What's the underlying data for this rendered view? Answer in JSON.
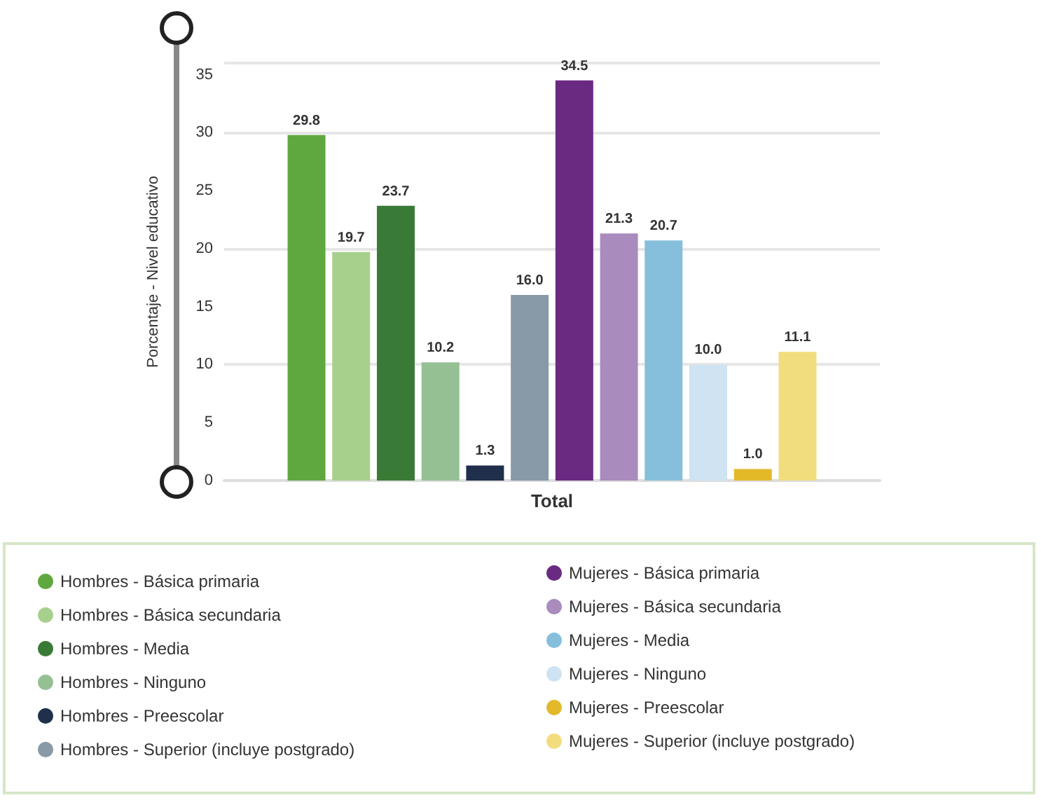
{
  "chart_data": {
    "type": "bar",
    "ylabel": "Porcentaje - Nivel educativo",
    "categories": [
      "Total"
    ],
    "ylim": [
      0,
      36
    ],
    "yticks": [
      0,
      5,
      10,
      15,
      20,
      25,
      30,
      35
    ],
    "grid": "y",
    "legend": "bottom",
    "series": [
      {
        "name": "Hombres - Básica primaria",
        "color": "#5fa83f",
        "values": [
          29.8
        ],
        "value_labels": [
          "29.8"
        ]
      },
      {
        "name": "Hombres - Básica secundaria",
        "color": "#a8d08d",
        "values": [
          19.7
        ],
        "value_labels": [
          "19.7"
        ]
      },
      {
        "name": "Hombres - Media",
        "color": "#3a7a37",
        "values": [
          23.7
        ],
        "value_labels": [
          "23.7"
        ]
      },
      {
        "name": "Hombres - Ninguno",
        "color": "#95c094",
        "values": [
          10.2
        ],
        "value_labels": [
          "10.2"
        ]
      },
      {
        "name": "Hombres - Preescolar",
        "color": "#1f2f4c",
        "values": [
          1.3
        ],
        "value_labels": [
          "1.3"
        ]
      },
      {
        "name": "Hombres - Superior (incluye postgrado)",
        "color": "#8899a8",
        "values": [
          16
        ],
        "value_labels": [
          "16.0"
        ]
      },
      {
        "name": "Mujeres - Básica primaria",
        "color": "#6a2a82",
        "values": [
          34.5
        ],
        "value_labels": [
          "34.5"
        ]
      },
      {
        "name": "Mujeres - Básica secundaria",
        "color": "#a98bbd",
        "values": [
          21.3
        ],
        "value_labels": [
          "21.3"
        ]
      },
      {
        "name": "Mujeres - Media",
        "color": "#86bfdc",
        "values": [
          20.7
        ],
        "value_labels": [
          "20.7"
        ]
      },
      {
        "name": "Mujeres - Ninguno",
        "color": "#cfe3f2",
        "values": [
          10
        ],
        "value_labels": [
          "10.0"
        ]
      },
      {
        "name": "Mujeres - Preescolar",
        "color": "#e3b92a",
        "values": [
          1
        ],
        "value_labels": [
          "1.0"
        ]
      },
      {
        "name": "Mujeres - Superior (incluye postgrado)",
        "color": "#f2dd7e",
        "values": [
          11.1
        ],
        "value_labels": [
          "11.1"
        ]
      }
    ]
  }
}
